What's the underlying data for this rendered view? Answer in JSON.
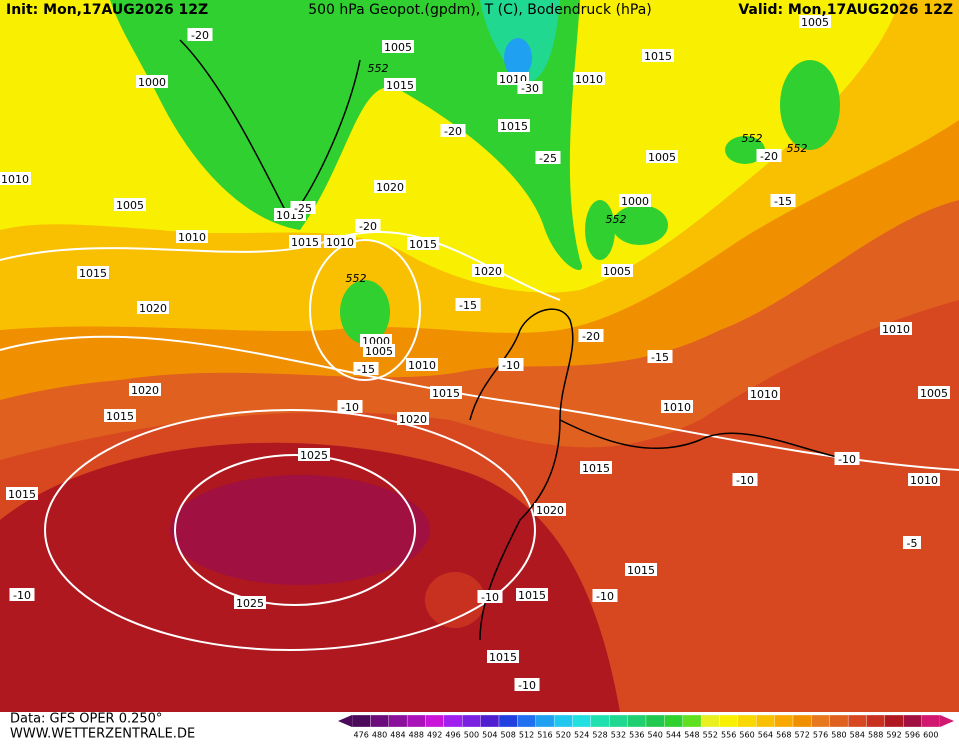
{
  "header": {
    "init": "Init: Mon,17AUG2026 12Z",
    "title": "500 hPa Geopot.(gpdm), T (C), Bodendruck (hPa)",
    "valid": "Valid: Mon,17AUG2026 12Z"
  },
  "map": {
    "pressure_labels": [
      "1005",
      "1000",
      "1015",
      "1010",
      "1010",
      "1015",
      "1005",
      "1015",
      "1005",
      "1020",
      "1005",
      "1010",
      "1015",
      "1015",
      "1010",
      "1015",
      "1020",
      "1000",
      "1005",
      "1015",
      "1020",
      "1000",
      "1005",
      "1010",
      "1015",
      "1020",
      "1020",
      "1015",
      "1025",
      "1015",
      "1025",
      "1020",
      "1015",
      "1010",
      "1010",
      "1010",
      "1005",
      "1010",
      "1015",
      "1015",
      "1015",
      "1010"
    ],
    "temperature_labels": [
      "-20",
      "-20",
      "-20",
      "-25",
      "-30",
      "-25",
      "-15",
      "-10",
      "-15",
      "-20",
      "-15",
      "-10",
      "-15",
      "-20",
      "-10",
      "-10",
      "-10",
      "-10",
      "-10",
      "-10",
      "-5"
    ],
    "geopotential_labels": [
      "552",
      "552",
      "552",
      "552",
      "552"
    ]
  },
  "colorbar": {
    "levels": [
      476,
      480,
      484,
      488,
      492,
      496,
      500,
      504,
      508,
      512,
      516,
      520,
      524,
      528,
      532,
      536,
      540,
      544,
      548,
      552,
      556,
      560,
      564,
      568,
      572,
      576,
      580,
      584,
      588,
      592,
      596,
      600
    ],
    "colors": [
      "#4b0a5a",
      "#6a0d7a",
      "#8a0f9a",
      "#a812b8",
      "#c815d8",
      "#a020f0",
      "#7a20e0",
      "#5020d0",
      "#2040e0",
      "#2070f0",
      "#20a0f0",
      "#20c8f0",
      "#20e0e0",
      "#20e0b0",
      "#20d890",
      "#20d070",
      "#20c850",
      "#30d030",
      "#60e020",
      "#e8f020",
      "#f8f000",
      "#f8d800",
      "#f8c000",
      "#f8a800",
      "#f09000",
      "#e87820",
      "#e06020",
      "#d84820",
      "#c83020",
      "#b01820",
      "#a01040",
      "#d01870"
    ]
  },
  "footer": {
    "data": "Data: GFS OPER 0.250°",
    "site": "WWW.WETTERZENTRALE.DE"
  }
}
